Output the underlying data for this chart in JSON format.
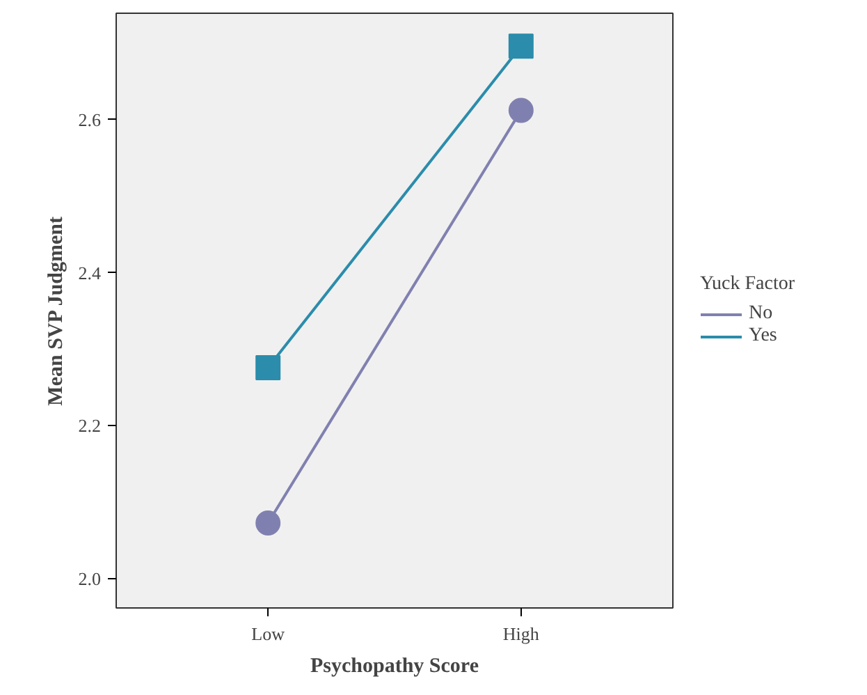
{
  "chart_data": {
    "type": "line",
    "xlabel": "Psychopathy Score",
    "ylabel": "Mean SVP Judgment",
    "legend_title": "Yuck Factor",
    "categories": [
      "Low",
      "High"
    ],
    "series": [
      {
        "name": "No",
        "color": "#8080b0",
        "values": [
          2.073,
          2.612
        ],
        "marker": "circle"
      },
      {
        "name": "Yes",
        "color": "#2b8cab",
        "values": [
          2.276,
          2.696
        ],
        "marker": "square"
      }
    ],
    "ylim": [
      1.962,
      2.739
    ],
    "yticks": [
      {
        "value": 2.0,
        "label": "2.0"
      },
      {
        "value": 2.2,
        "label": "2.2"
      },
      {
        "value": 2.4,
        "label": "2.4"
      },
      {
        "value": 2.6,
        "label": "2.6"
      }
    ],
    "grid": false,
    "legend": "right",
    "line_style": "solid"
  }
}
